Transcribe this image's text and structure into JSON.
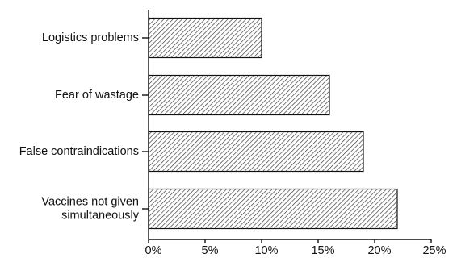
{
  "chart_data": {
    "type": "bar",
    "orientation": "horizontal",
    "categories": [
      [
        "Logistics problems"
      ],
      [
        "Fear of wastage"
      ],
      [
        "False contraindications"
      ],
      [
        "Vaccines not given",
        "simultaneously"
      ]
    ],
    "values": [
      10,
      16,
      19,
      22
    ],
    "unit": "%",
    "xlim": [
      0,
      25
    ],
    "xticks": [
      0,
      5,
      10,
      15,
      20,
      25
    ],
    "xtick_labels": [
      "0%",
      "5%",
      "10%",
      "15%",
      "20%",
      "25%"
    ],
    "bar_fill": "hatched",
    "grid": false,
    "legend": "none"
  }
}
